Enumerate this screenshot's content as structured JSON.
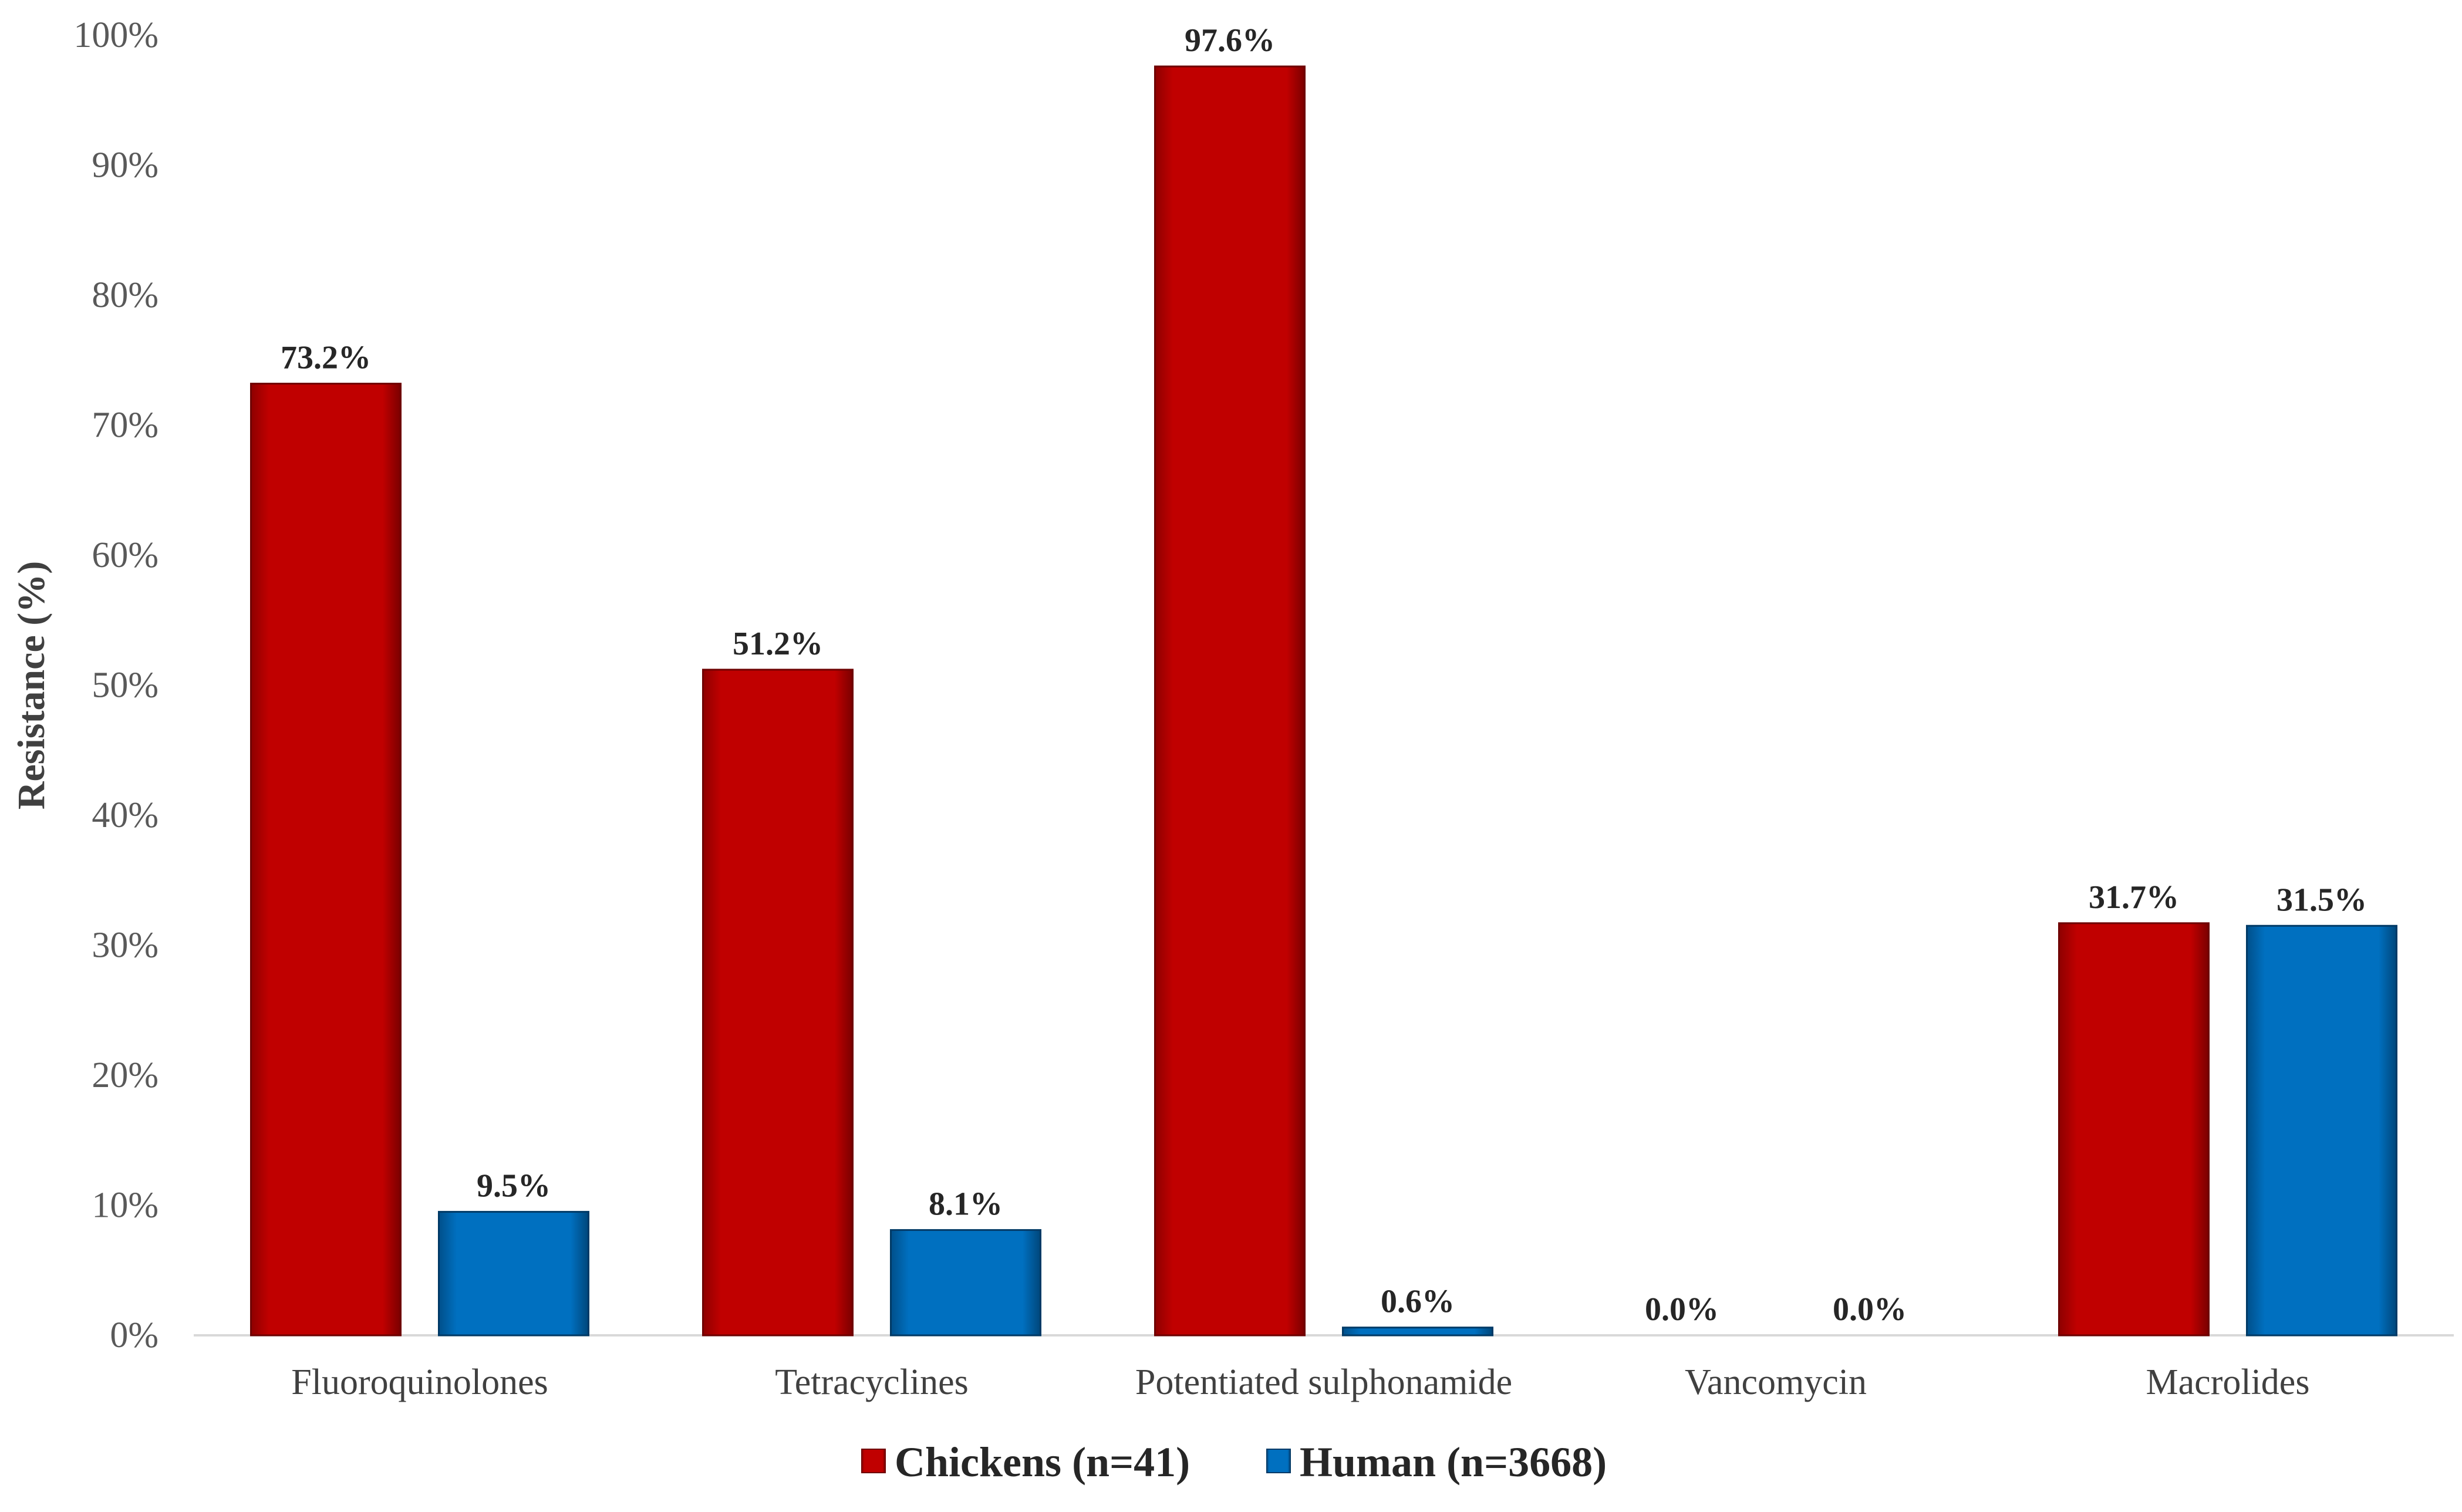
{
  "chart_data": {
    "type": "bar",
    "title": "",
    "xlabel": "",
    "ylabel": "Resistance (%)",
    "ylim": [
      0,
      100
    ],
    "y_ticks": [
      "0%",
      "10%",
      "20%",
      "30%",
      "40%",
      "50%",
      "60%",
      "70%",
      "80%",
      "90%",
      "100%"
    ],
    "y_tick_values": [
      0,
      10,
      20,
      30,
      40,
      50,
      60,
      70,
      80,
      90,
      100
    ],
    "grid": false,
    "legend_position": "bottom",
    "categories": [
      "Fluoroquinolones",
      "Tetracyclines",
      "Potentiated sulphonamide",
      "Vancomycin",
      "Macrolides"
    ],
    "series": [
      {
        "name": "Chickens (n=41)",
        "color": "#C00000",
        "values": [
          73.2,
          51.2,
          97.6,
          0.0,
          31.7
        ],
        "labels": [
          "73.2%",
          "51.2%",
          "97.6%",
          "0.0%",
          "31.7%"
        ]
      },
      {
        "name": "Human (n=3668)",
        "color": "#0070C0",
        "values": [
          9.5,
          8.1,
          0.6,
          0.0,
          31.5
        ],
        "labels": [
          "9.5%",
          "8.1%",
          "0.6%",
          "0.0%",
          "31.5%"
        ]
      }
    ]
  }
}
